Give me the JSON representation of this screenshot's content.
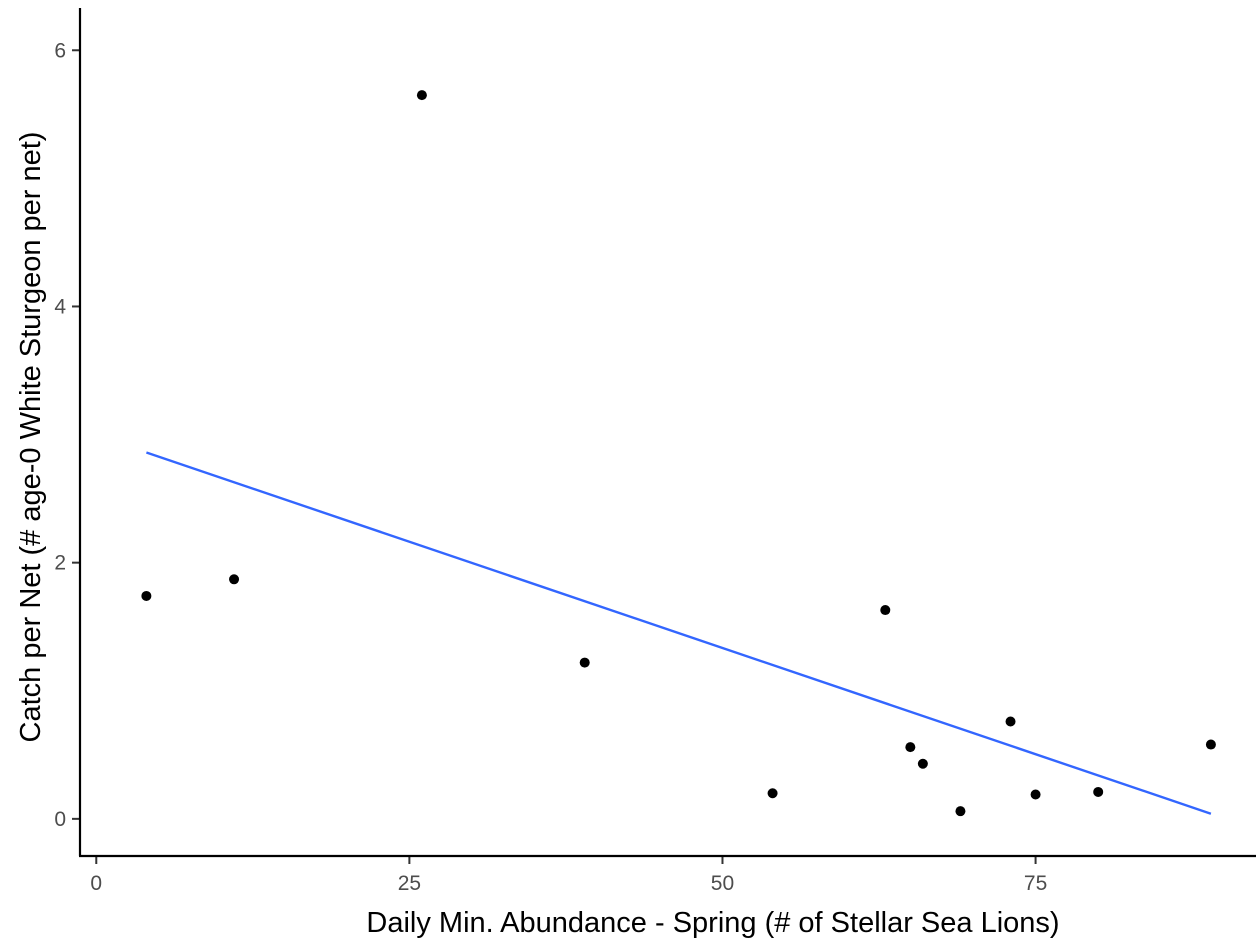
{
  "chart_data": {
    "type": "scatter",
    "title": "",
    "xlabel": "Daily Min. Abundance - Spring (# of Stellar Sea Lions)",
    "ylabel": "Catch per Net (# age-0 White Sturgeon per net)",
    "xlim": [
      -1.3,
      92.6
    ],
    "ylim": [
      -0.29,
      6.33
    ],
    "x_ticks": [
      0,
      25,
      50,
      75
    ],
    "x_tick_labels": [
      "0",
      "25",
      "50",
      "75"
    ],
    "y_ticks": [
      0,
      2,
      4,
      6
    ],
    "y_tick_labels": [
      "0",
      "2",
      "4",
      "6"
    ],
    "grid": false,
    "legend": "none",
    "series": [
      {
        "kind": "points",
        "color": "#000000",
        "points": [
          {
            "x": 4,
            "y": 1.74
          },
          {
            "x": 11,
            "y": 1.87
          },
          {
            "x": 26,
            "y": 5.65
          },
          {
            "x": 39,
            "y": 1.22
          },
          {
            "x": 54,
            "y": 0.2
          },
          {
            "x": 63,
            "y": 1.63
          },
          {
            "x": 65,
            "y": 0.56
          },
          {
            "x": 66,
            "y": 0.43
          },
          {
            "x": 69,
            "y": 0.06
          },
          {
            "x": 73,
            "y": 0.76
          },
          {
            "x": 75,
            "y": 0.19
          },
          {
            "x": 80,
            "y": 0.21
          },
          {
            "x": 89,
            "y": 0.58
          }
        ]
      },
      {
        "kind": "fit",
        "color": "#3366FF",
        "points": [
          {
            "x": 4,
            "y": 2.86
          },
          {
            "x": 89,
            "y": 0.04
          }
        ]
      }
    ]
  }
}
